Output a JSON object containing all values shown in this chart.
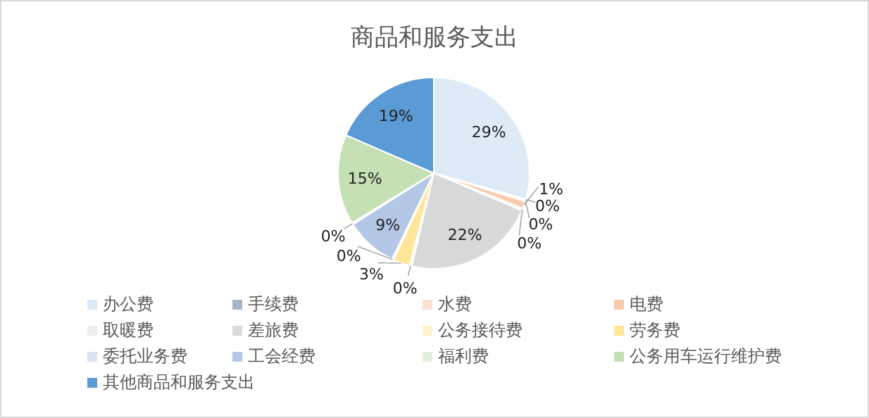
{
  "chart_data": {
    "type": "pie",
    "title": "商品和服务支出",
    "categories": [
      "办公费",
      "手续费",
      "水费",
      "电费",
      "取暖费",
      "差旅费",
      "公务接待费",
      "劳务费",
      "委托业务费",
      "工会经费",
      "福利费",
      "公务用车运行维护费",
      "其他商品和服务支出"
    ],
    "values": [
      29.4,
      0.1,
      0.3,
      1.2,
      0.4,
      22.3,
      0.4,
      2.8,
      0.3,
      8.8,
      0.3,
      15.2,
      18.5
    ],
    "value_labels": [
      "29%",
      "0%",
      "0%",
      "1%",
      "0%",
      "22%",
      "0%",
      "3%",
      "0%",
      "9%",
      "0%",
      "15%",
      "19%"
    ],
    "colors": [
      "#deebf7",
      "#a5b4c8",
      "#fbe2d5",
      "#f8cbad",
      "#ededed",
      "#d9d9d9",
      "#fff2cc",
      "#ffe699",
      "#dae3f3",
      "#b4c7e7",
      "#e2efda",
      "#c5e0b4",
      "#5b9bd5"
    ],
    "legend": "bottom"
  }
}
